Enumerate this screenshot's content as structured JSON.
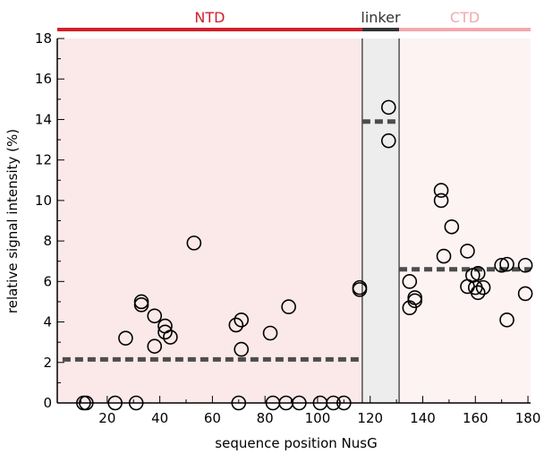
{
  "chart_data": {
    "type": "scatter",
    "xlabel": "sequence position NusG",
    "ylabel": "relative signal intensity (%)",
    "xlim": [
      1,
      181
    ],
    "ylim": [
      0,
      18
    ],
    "x_ticks": [
      20,
      40,
      60,
      80,
      100,
      120,
      140,
      160,
      180
    ],
    "y_ticks": [
      0,
      2,
      4,
      6,
      8,
      10,
      12,
      14,
      16,
      18
    ],
    "grid": false,
    "regions": [
      {
        "label": "NTD",
        "x_start": 1,
        "x_end": 117,
        "band_color": "#d21f2a",
        "fill_color": "#fbe9e9",
        "label_color": "#d21f2a"
      },
      {
        "label": "linker",
        "x_start": 117,
        "x_end": 131,
        "band_color": "#333333",
        "fill_color": "#ededed",
        "label_color": "#333333"
      },
      {
        "label": "CTD",
        "x_start": 131,
        "x_end": 181,
        "band_color": "#f2a9ae",
        "fill_color": "#fdf3f3",
        "label_color": "#f2a9ae"
      }
    ],
    "averages": [
      {
        "x_start": 3,
        "x_end": 117,
        "y": 2.15
      },
      {
        "x_start": 117,
        "x_end": 131,
        "y": 13.9
      },
      {
        "x_start": 131,
        "x_end": 181,
        "y": 6.6
      }
    ],
    "points": [
      {
        "x": 11,
        "y": 0
      },
      {
        "x": 12,
        "y": 0
      },
      {
        "x": 23,
        "y": 0
      },
      {
        "x": 27,
        "y": 3.2
      },
      {
        "x": 31,
        "y": 0
      },
      {
        "x": 33,
        "y": 5.0
      },
      {
        "x": 33,
        "y": 4.85
      },
      {
        "x": 38,
        "y": 2.8
      },
      {
        "x": 38,
        "y": 4.3
      },
      {
        "x": 42,
        "y": 3.8
      },
      {
        "x": 42,
        "y": 3.5
      },
      {
        "x": 44,
        "y": 3.25
      },
      {
        "x": 53,
        "y": 7.9
      },
      {
        "x": 69,
        "y": 3.85
      },
      {
        "x": 70,
        "y": 0
      },
      {
        "x": 71,
        "y": 4.1
      },
      {
        "x": 71,
        "y": 2.65
      },
      {
        "x": 82,
        "y": 3.45
      },
      {
        "x": 83,
        "y": 0
      },
      {
        "x": 88,
        "y": 0
      },
      {
        "x": 89,
        "y": 4.75
      },
      {
        "x": 93,
        "y": 0
      },
      {
        "x": 101,
        "y": 0
      },
      {
        "x": 106,
        "y": 0
      },
      {
        "x": 110,
        "y": 0
      },
      {
        "x": 116,
        "y": 5.7
      },
      {
        "x": 116,
        "y": 5.6
      },
      {
        "x": 127,
        "y": 14.6
      },
      {
        "x": 127,
        "y": 12.95
      },
      {
        "x": 135,
        "y": 6.0
      },
      {
        "x": 135,
        "y": 4.7
      },
      {
        "x": 137,
        "y": 5.2
      },
      {
        "x": 137,
        "y": 5.05
      },
      {
        "x": 147,
        "y": 10.5
      },
      {
        "x": 147,
        "y": 10.0
      },
      {
        "x": 148,
        "y": 7.25
      },
      {
        "x": 151,
        "y": 8.7
      },
      {
        "x": 157,
        "y": 7.5
      },
      {
        "x": 157,
        "y": 5.75
      },
      {
        "x": 159,
        "y": 6.3
      },
      {
        "x": 160,
        "y": 5.7
      },
      {
        "x": 161,
        "y": 6.4
      },
      {
        "x": 161,
        "y": 5.45
      },
      {
        "x": 163,
        "y": 5.7
      },
      {
        "x": 170,
        "y": 6.8
      },
      {
        "x": 172,
        "y": 6.85
      },
      {
        "x": 172,
        "y": 4.1
      },
      {
        "x": 179,
        "y": 6.8
      },
      {
        "x": 179,
        "y": 5.4
      }
    ],
    "colors": {
      "marker": "#000000",
      "average_line": "#4d4d4d",
      "axis": "#000000"
    }
  }
}
